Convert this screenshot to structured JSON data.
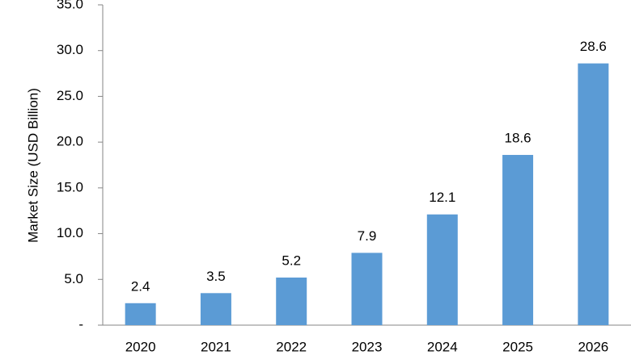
{
  "chart_data": {
    "type": "bar",
    "y_label": "Market Size (USD Billion)",
    "categories": [
      "2020",
      "2021",
      "2022",
      "2023",
      "2024",
      "2025",
      "2026"
    ],
    "values": [
      2.4,
      3.5,
      5.2,
      7.9,
      12.1,
      18.6,
      28.6
    ],
    "color": "#5b9bd5",
    "ylim": [
      0,
      35
    ],
    "yticks": [
      {
        "value": 0,
        "label": "-"
      },
      {
        "value": 5,
        "label": "5.0"
      },
      {
        "value": 10,
        "label": "10.0"
      },
      {
        "value": 15,
        "label": "15.0"
      },
      {
        "value": 20,
        "label": "20.0"
      },
      {
        "value": 25,
        "label": "25.0"
      },
      {
        "value": 30,
        "label": "30.0"
      },
      {
        "value": 35,
        "label": "35.0"
      }
    ],
    "grid": false
  }
}
